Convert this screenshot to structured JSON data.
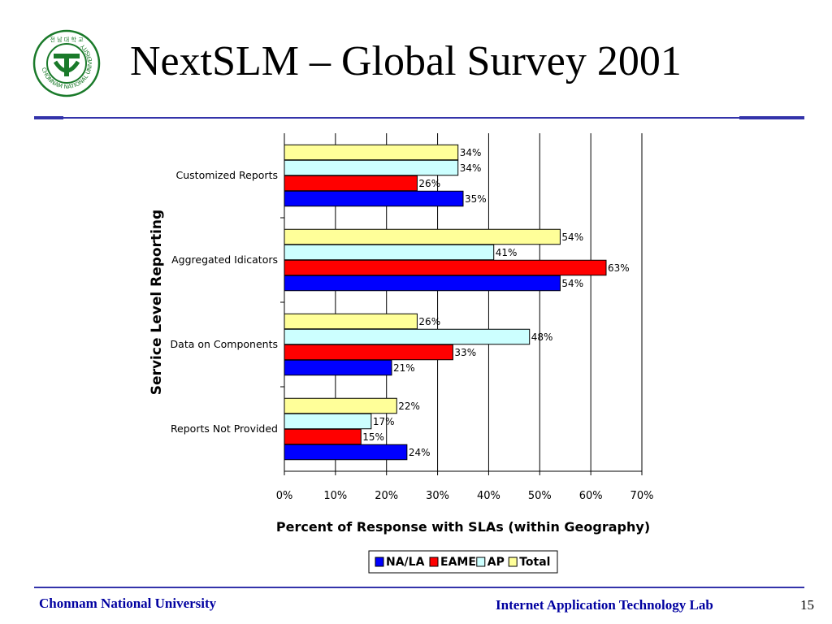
{
  "slide": {
    "title": "NextSLM – Global Survey 2001",
    "footer_left": "Chonnam National University",
    "footer_right": "Internet Application Technology Lab",
    "page_number": "15",
    "rule_color": "#3333aa",
    "footer_color": "#0000a0"
  },
  "logo": {
    "top_text": "전 남 대 학 교",
    "ring_text": "CHONNAM NATIONAL UNIVERSITY",
    "color": "#1a7a2a"
  },
  "chart_data": {
    "type": "bar",
    "orientation": "horizontal",
    "categories": [
      "Customized Reports",
      "Aggregated Idicators",
      "Data on Components",
      "Reports Not Provided"
    ],
    "series": [
      {
        "name": "NA/LA",
        "color": "#0000ff",
        "values": [
          35,
          54,
          21,
          24
        ],
        "labels": [
          "35%",
          "54%",
          "21%",
          "24%"
        ]
      },
      {
        "name": "EAME",
        "color": "#ff0000",
        "values": [
          26,
          63,
          33,
          15
        ],
        "labels": [
          "26%",
          "63%",
          "33%",
          "15%"
        ]
      },
      {
        "name": "AP",
        "color": "#ccffff",
        "values": [
          34,
          41,
          48,
          17
        ],
        "labels": [
          "34%",
          "41%",
          "48%",
          "17%"
        ]
      },
      {
        "name": "Total",
        "color": "#ffff99",
        "values": [
          34,
          54,
          26,
          22
        ],
        "labels": [
          "34%",
          "54%",
          "26%",
          "22%"
        ]
      }
    ],
    "xlabel": "Percent of Response with SLAs  (within Geography)",
    "ylabel": "Service Level Reporting",
    "xlim": [
      0,
      70
    ],
    "xticks": [
      "0%",
      "10%",
      "20%",
      "30%",
      "40%",
      "50%",
      "60%",
      "70%"
    ],
    "grid": "vertical",
    "legend_position": "bottom"
  }
}
